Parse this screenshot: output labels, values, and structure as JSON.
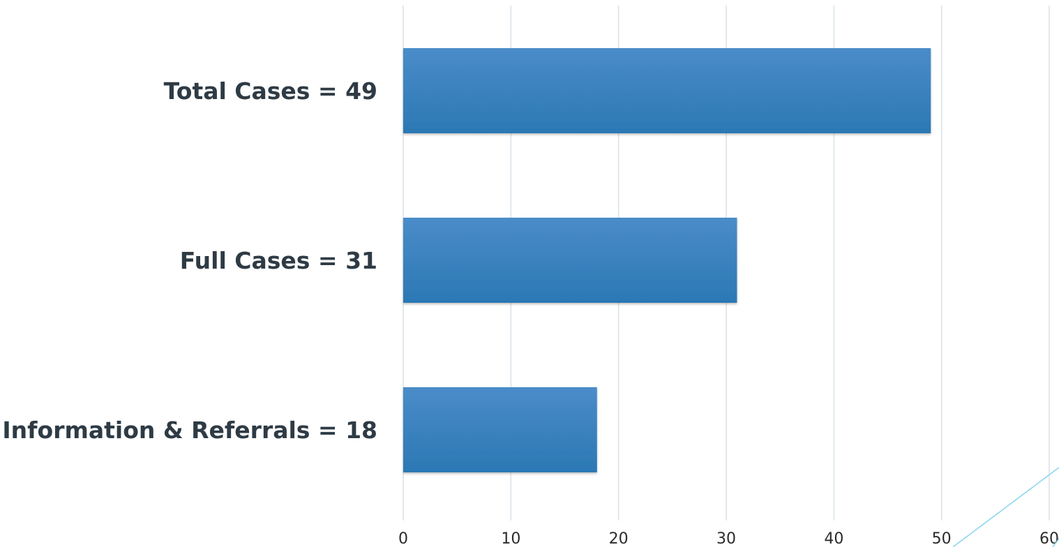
{
  "chart_data": {
    "type": "bar",
    "orientation": "horizontal",
    "categories": [
      "Total Cases = 49",
      "Full Cases = 31",
      "Information & Referrals = 18"
    ],
    "values": [
      49,
      31,
      18
    ],
    "title": "",
    "xlabel": "",
    "ylabel": "",
    "xlim": [
      0,
      60
    ],
    "xticks": [
      "0",
      "10",
      "20",
      "30",
      "40",
      "50",
      "60"
    ],
    "grid": true,
    "legend": "none",
    "colors": {
      "bar_top": "#4a8cc9",
      "bar_bottom": "#2b78b4",
      "grid": "#dbe3e8",
      "label": "#2e3b45",
      "accent_line": "#8ed6ee"
    }
  }
}
